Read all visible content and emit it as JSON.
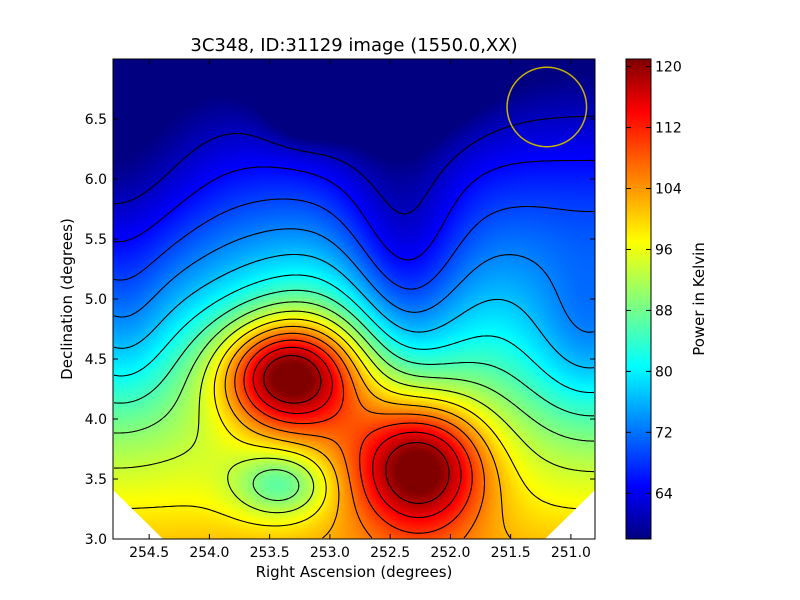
{
  "chart_data": {
    "type": "heatmap",
    "title": "3C348, ID:31129 image (1550.0,XX)",
    "xlabel": "Right Ascension (degrees)",
    "ylabel": "Declination (degrees)",
    "xlim": [
      254.8,
      250.8
    ],
    "ylim": [
      3.0,
      7.0
    ],
    "x_ticks": [
      "254.5",
      "254.0",
      "253.5",
      "253.0",
      "252.5",
      "252.0",
      "251.5",
      "251.0"
    ],
    "x_tick_values": [
      254.5,
      254.0,
      253.5,
      253.0,
      252.5,
      252.0,
      251.5,
      251.0
    ],
    "y_ticks": [
      "3.0",
      "3.5",
      "4.0",
      "4.5",
      "5.0",
      "5.5",
      "6.0",
      "6.5"
    ],
    "y_tick_values": [
      3.0,
      3.5,
      4.0,
      4.5,
      5.0,
      5.5,
      6.0,
      6.5
    ],
    "colorbar": {
      "label": "Power in Kelvin",
      "range": [
        58,
        121
      ],
      "ticks": [
        "64",
        "72",
        "80",
        "88",
        "96",
        "104",
        "112",
        "120"
      ],
      "tick_values": [
        64,
        72,
        80,
        88,
        96,
        104,
        112,
        120
      ],
      "colormap": "jet"
    },
    "features": [
      {
        "type": "peak",
        "ra": 253.4,
        "dec": 4.38,
        "value": 118
      },
      {
        "type": "peak",
        "ra": 252.25,
        "dec": 3.58,
        "value": 119
      },
      {
        "type": "minimum",
        "ra": 252.65,
        "dec": 7.0,
        "value": 58
      },
      {
        "type": "minimum",
        "ra": 253.2,
        "dec": 6.52,
        "value": 70
      },
      {
        "type": "local-minimum",
        "ra": 253.4,
        "dec": 3.5,
        "value": 86
      },
      {
        "type": "local-minimum",
        "ra": 250.85,
        "dec": 4.65,
        "value": 80
      }
    ],
    "circle": {
      "ra": 251.2,
      "dec": 6.6,
      "radius_deg": 0.33,
      "color": "#c8b400"
    }
  }
}
